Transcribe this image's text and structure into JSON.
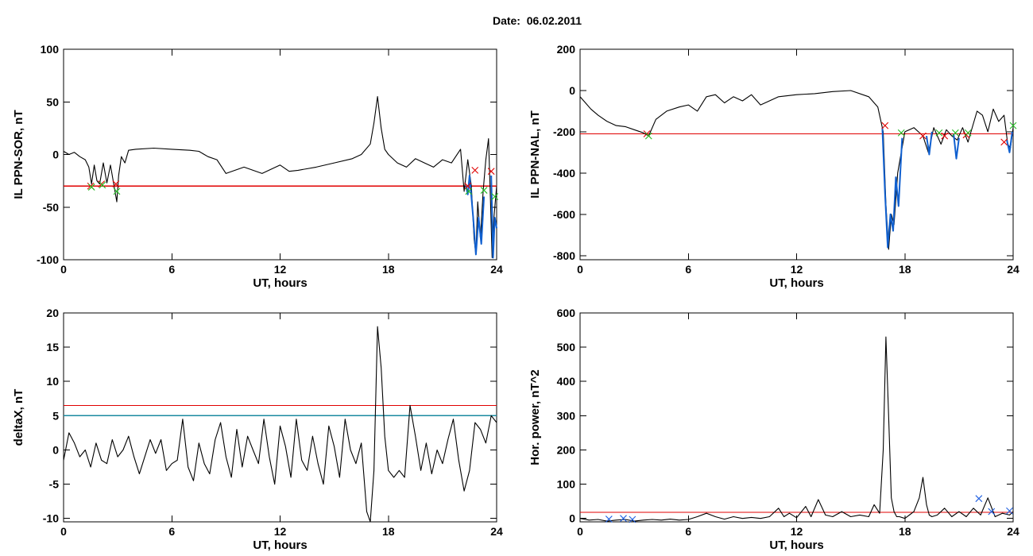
{
  "date_label": "Date:  06.02.2011",
  "colors": {
    "trace": "#000000",
    "threshold_red": "#e00000",
    "threshold_teal": "#1a8aa0",
    "substorm_trace": "#1060d0",
    "marker_red": "#e00000",
    "marker_green": "#22bb22",
    "marker_blue": "#2060e0"
  },
  "chart_data": [
    {
      "type": "line",
      "xlabel": "UT, hours",
      "ylabel": "IL PPN-SOR, nT",
      "xlim": [
        0,
        24
      ],
      "ylim": [
        -100,
        100
      ],
      "xticks": [
        0,
        6,
        12,
        18,
        24
      ],
      "yticks": [
        -100,
        -50,
        0,
        50,
        100
      ],
      "grid": false,
      "x": [
        0,
        0.3,
        0.6,
        0.9,
        1.2,
        1.4,
        1.55,
        1.7,
        1.85,
        2.0,
        2.2,
        2.4,
        2.6,
        2.8,
        2.95,
        3.05,
        3.2,
        3.4,
        3.6,
        4.0,
        5.0,
        6.0,
        7.0,
        7.5,
        8.0,
        8.5,
        9.0,
        9.5,
        10.0,
        11.0,
        12.0,
        12.5,
        13.0,
        14.0,
        15.0,
        16.0,
        16.5,
        17.0,
        17.2,
        17.4,
        17.6,
        17.8,
        18.0,
        18.5,
        19.0,
        19.5,
        20.0,
        20.5,
        21.0,
        21.5,
        22.0,
        22.2,
        22.4,
        22.6,
        22.75,
        22.85,
        22.95,
        23.1,
        23.25,
        23.4,
        23.55,
        23.65,
        23.75,
        23.85,
        24.0
      ],
      "values": [
        3,
        0,
        2,
        -2,
        -5,
        -12,
        -28,
        -10,
        -25,
        -28,
        -8,
        -27,
        -10,
        -30,
        -45,
        -20,
        -2,
        -8,
        4,
        5,
        6,
        5,
        4,
        3,
        -2,
        -5,
        -18,
        -15,
        -12,
        -18,
        -10,
        -16,
        -15,
        -12,
        -8,
        -4,
        0,
        10,
        30,
        55,
        25,
        5,
        0,
        -8,
        -12,
        -4,
        -8,
        -12,
        -5,
        -8,
        5,
        -35,
        -5,
        -30,
        -80,
        -95,
        -45,
        -80,
        -35,
        -5,
        15,
        -40,
        -98,
        -60,
        -30
      ],
      "subseries": [
        {
          "x": [
            22.3,
            22.4,
            22.5,
            22.7,
            22.85,
            23.0,
            23.15,
            23.3
          ],
          "values": [
            -30,
            -38,
            -20,
            -60,
            -95,
            -60,
            -85,
            -40
          ]
        },
        {
          "x": [
            23.7,
            23.8,
            23.9,
            24.0
          ],
          "values": [
            -20,
            -98,
            -60,
            -70
          ]
        }
      ],
      "thresholds": [
        {
          "y": -30,
          "color": "#e00000"
        }
      ],
      "markers": [
        {
          "x": 1.5,
          "y": -30,
          "color": "#e00000"
        },
        {
          "x": 1.55,
          "y": -31,
          "color": "#22bb22"
        },
        {
          "x": 2.1,
          "y": -28,
          "color": "#e00000"
        },
        {
          "x": 2.15,
          "y": -29,
          "color": "#22bb22"
        },
        {
          "x": 2.9,
          "y": -28,
          "color": "#e00000"
        },
        {
          "x": 2.95,
          "y": -35,
          "color": "#22bb22"
        },
        {
          "x": 22.4,
          "y": -30,
          "color": "#e00000"
        },
        {
          "x": 22.45,
          "y": -35,
          "color": "#22bb22"
        },
        {
          "x": 22.8,
          "y": -15,
          "color": "#e00000"
        },
        {
          "x": 23.3,
          "y": -34,
          "color": "#22bb22"
        },
        {
          "x": 23.7,
          "y": -16,
          "color": "#e00000"
        },
        {
          "x": 23.9,
          "y": -40,
          "color": "#22bb22"
        }
      ]
    },
    {
      "type": "line",
      "xlabel": "UT, hours",
      "ylabel": "IL PPN-NAL, nT",
      "xlim": [
        0,
        24
      ],
      "ylim": [
        -820,
        200
      ],
      "xticks": [
        0,
        6,
        12,
        18,
        24
      ],
      "yticks": [
        -800,
        -600,
        -400,
        -200,
        0,
        200
      ],
      "grid": false,
      "x": [
        0,
        0.3,
        0.6,
        1.0,
        1.5,
        2.0,
        2.5,
        3.0,
        3.5,
        3.8,
        4.2,
        4.8,
        5.5,
        6.0,
        6.5,
        7.0,
        7.5,
        8.0,
        8.5,
        9.0,
        9.5,
        10.0,
        11.0,
        12.0,
        13.0,
        14.0,
        15.0,
        16.0,
        16.5,
        16.8,
        16.95,
        17.1,
        17.25,
        17.4,
        17.6,
        17.8,
        18.0,
        18.5,
        19.0,
        19.3,
        19.6,
        20.0,
        20.3,
        20.6,
        20.9,
        21.2,
        21.5,
        21.8,
        22.0,
        22.3,
        22.6,
        22.9,
        23.2,
        23.5,
        23.7,
        23.85,
        24.0
      ],
      "values": [
        -30,
        -60,
        -90,
        -120,
        -150,
        -170,
        -175,
        -190,
        -205,
        -220,
        -140,
        -100,
        -80,
        -70,
        -100,
        -30,
        -20,
        -60,
        -30,
        -50,
        -20,
        -70,
        -30,
        -20,
        -15,
        -5,
        0,
        -30,
        -80,
        -200,
        -550,
        -770,
        -600,
        -650,
        -400,
        -300,
        -200,
        -180,
        -220,
        -300,
        -180,
        -260,
        -190,
        -220,
        -240,
        -180,
        -250,
        -160,
        -100,
        -120,
        -200,
        -90,
        -150,
        -120,
        -260,
        -280,
        -180
      ],
      "subseries": [
        {
          "x": [
            16.75,
            16.9,
            17.05,
            17.2,
            17.35,
            17.5,
            17.65,
            17.85
          ],
          "values": [
            -180,
            -500,
            -760,
            -600,
            -680,
            -420,
            -560,
            -230
          ]
        },
        {
          "x": [
            19.2,
            19.35,
            19.5
          ],
          "values": [
            -220,
            -310,
            -200
          ]
        },
        {
          "x": [
            20.7,
            20.85,
            21.0
          ],
          "values": [
            -210,
            -330,
            -230
          ]
        },
        {
          "x": [
            23.65,
            23.8,
            23.95
          ],
          "values": [
            -240,
            -300,
            -200
          ]
        }
      ],
      "thresholds": [
        {
          "y": -210,
          "color": "#e00000"
        }
      ],
      "markers": [
        {
          "x": 3.7,
          "y": -210,
          "color": "#e00000"
        },
        {
          "x": 3.8,
          "y": -220,
          "color": "#22bb22"
        },
        {
          "x": 16.9,
          "y": -170,
          "color": "#e00000"
        },
        {
          "x": 17.8,
          "y": -205,
          "color": "#22bb22"
        },
        {
          "x": 19.0,
          "y": -220,
          "color": "#e00000"
        },
        {
          "x": 19.9,
          "y": -205,
          "color": "#22bb22"
        },
        {
          "x": 20.2,
          "y": -220,
          "color": "#e00000"
        },
        {
          "x": 20.8,
          "y": -205,
          "color": "#22bb22"
        },
        {
          "x": 21.4,
          "y": -215,
          "color": "#e00000"
        },
        {
          "x": 21.5,
          "y": -205,
          "color": "#22bb22"
        },
        {
          "x": 23.5,
          "y": -250,
          "color": "#e00000"
        },
        {
          "x": 24.0,
          "y": -170,
          "color": "#22bb22"
        }
      ]
    },
    {
      "type": "line",
      "xlabel": "UT, hours",
      "ylabel": "deltaX, nT",
      "xlim": [
        0,
        24
      ],
      "ylim": [
        -10.5,
        20
      ],
      "xticks": [
        0,
        6,
        12,
        18,
        24
      ],
      "yticks": [
        -10,
        -5,
        0,
        5,
        10,
        15,
        20
      ],
      "grid": false,
      "x": [
        0,
        0.3,
        0.6,
        0.9,
        1.2,
        1.5,
        1.8,
        2.1,
        2.4,
        2.7,
        3.0,
        3.3,
        3.6,
        3.9,
        4.2,
        4.5,
        4.8,
        5.1,
        5.4,
        5.7,
        6.0,
        6.3,
        6.6,
        6.9,
        7.2,
        7.5,
        7.8,
        8.1,
        8.4,
        8.7,
        9.0,
        9.3,
        9.6,
        9.9,
        10.2,
        10.5,
        10.8,
        11.1,
        11.4,
        11.7,
        12.0,
        12.3,
        12.6,
        12.9,
        13.2,
        13.5,
        13.8,
        14.1,
        14.4,
        14.7,
        15.0,
        15.3,
        15.6,
        15.9,
        16.2,
        16.5,
        16.8,
        17.0,
        17.2,
        17.4,
        17.6,
        17.8,
        18.0,
        18.3,
        18.6,
        18.9,
        19.2,
        19.5,
        19.8,
        20.1,
        20.4,
        20.7,
        21.0,
        21.3,
        21.6,
        21.9,
        22.2,
        22.5,
        22.8,
        23.1,
        23.4,
        23.7,
        24.0
      ],
      "values": [
        -1.5,
        2.5,
        1.0,
        -1.0,
        0.0,
        -2.5,
        1.0,
        -1.5,
        -2.0,
        1.5,
        -1.0,
        0.0,
        2.0,
        -1.0,
        -3.5,
        -1.0,
        1.5,
        -0.5,
        1.5,
        -3.0,
        -2.0,
        -1.5,
        4.5,
        -2.5,
        -4.5,
        1.0,
        -2.0,
        -3.5,
        1.5,
        4.0,
        -1.0,
        -4.0,
        3.0,
        -2.5,
        2.0,
        0.0,
        -2.0,
        4.5,
        -1.0,
        -5.0,
        3.5,
        0.5,
        -4.0,
        4.5,
        -1.5,
        -3.0,
        2.0,
        -2.0,
        -5.0,
        3.5,
        0.5,
        -4.0,
        4.5,
        0.0,
        -2.0,
        1.0,
        -9.0,
        -10.5,
        -3.0,
        18.0,
        12.0,
        2.0,
        -3.0,
        -4.0,
        -3.0,
        -4.0,
        6.5,
        2.0,
        -3.0,
        1.0,
        -3.5,
        0.0,
        -2.0,
        1.5,
        4.5,
        -1.5,
        -6.0,
        -3.0,
        4.0,
        3.0,
        1.0,
        5.0,
        4.0
      ],
      "thresholds": [
        {
          "y": 6.5,
          "color": "#e00000"
        },
        {
          "y": 5.0,
          "color": "#1a8aa0"
        }
      ],
      "markers": []
    },
    {
      "type": "line",
      "xlabel": "UT, hours",
      "ylabel": "Hor. power, nT^2",
      "xlim": [
        0,
        24
      ],
      "ylim": [
        -10,
        600
      ],
      "xticks": [
        0,
        6,
        12,
        18,
        24
      ],
      "yticks": [
        0,
        100,
        200,
        300,
        400,
        500,
        600
      ],
      "grid": false,
      "x": [
        0,
        0.5,
        1.0,
        1.5,
        2.0,
        2.5,
        3.0,
        3.5,
        4.0,
        4.5,
        5.0,
        5.5,
        6.0,
        6.5,
        7.0,
        7.5,
        8.0,
        8.5,
        9.0,
        9.5,
        10.0,
        10.5,
        11.0,
        11.3,
        11.6,
        12.0,
        12.5,
        12.8,
        13.2,
        13.6,
        14.0,
        14.5,
        15.0,
        15.5,
        16.0,
        16.3,
        16.6,
        16.8,
        16.95,
        17.1,
        17.25,
        17.4,
        17.55,
        17.7,
        18.0,
        18.5,
        18.8,
        19.0,
        19.2,
        19.35,
        19.5,
        19.8,
        20.2,
        20.6,
        21.0,
        21.4,
        21.8,
        22.2,
        22.6,
        23.0,
        23.4,
        23.8,
        24.0
      ],
      "values": [
        0,
        -5,
        -3,
        -8,
        -5,
        -3,
        -8,
        -5,
        -3,
        -5,
        -2,
        -5,
        -3,
        5,
        15,
        5,
        -2,
        5,
        0,
        3,
        0,
        5,
        30,
        5,
        15,
        2,
        35,
        5,
        55,
        10,
        5,
        20,
        5,
        10,
        5,
        40,
        15,
        200,
        530,
        300,
        60,
        20,
        5,
        5,
        0,
        20,
        60,
        120,
        40,
        10,
        5,
        10,
        30,
        5,
        20,
        5,
        30,
        10,
        60,
        5,
        15,
        10,
        20
      ],
      "thresholds": [
        {
          "y": 18,
          "color": "#e00000"
        }
      ],
      "markers": [
        {
          "x": 1.6,
          "y": -2,
          "color": "#2060e0"
        },
        {
          "x": 2.4,
          "y": 0,
          "color": "#2060e0"
        },
        {
          "x": 2.9,
          "y": -3,
          "color": "#2060e0"
        },
        {
          "x": 22.1,
          "y": 58,
          "color": "#2060e0"
        },
        {
          "x": 22.8,
          "y": 20,
          "color": "#2060e0"
        },
        {
          "x": 23.8,
          "y": 22,
          "color": "#2060e0"
        }
      ]
    }
  ]
}
